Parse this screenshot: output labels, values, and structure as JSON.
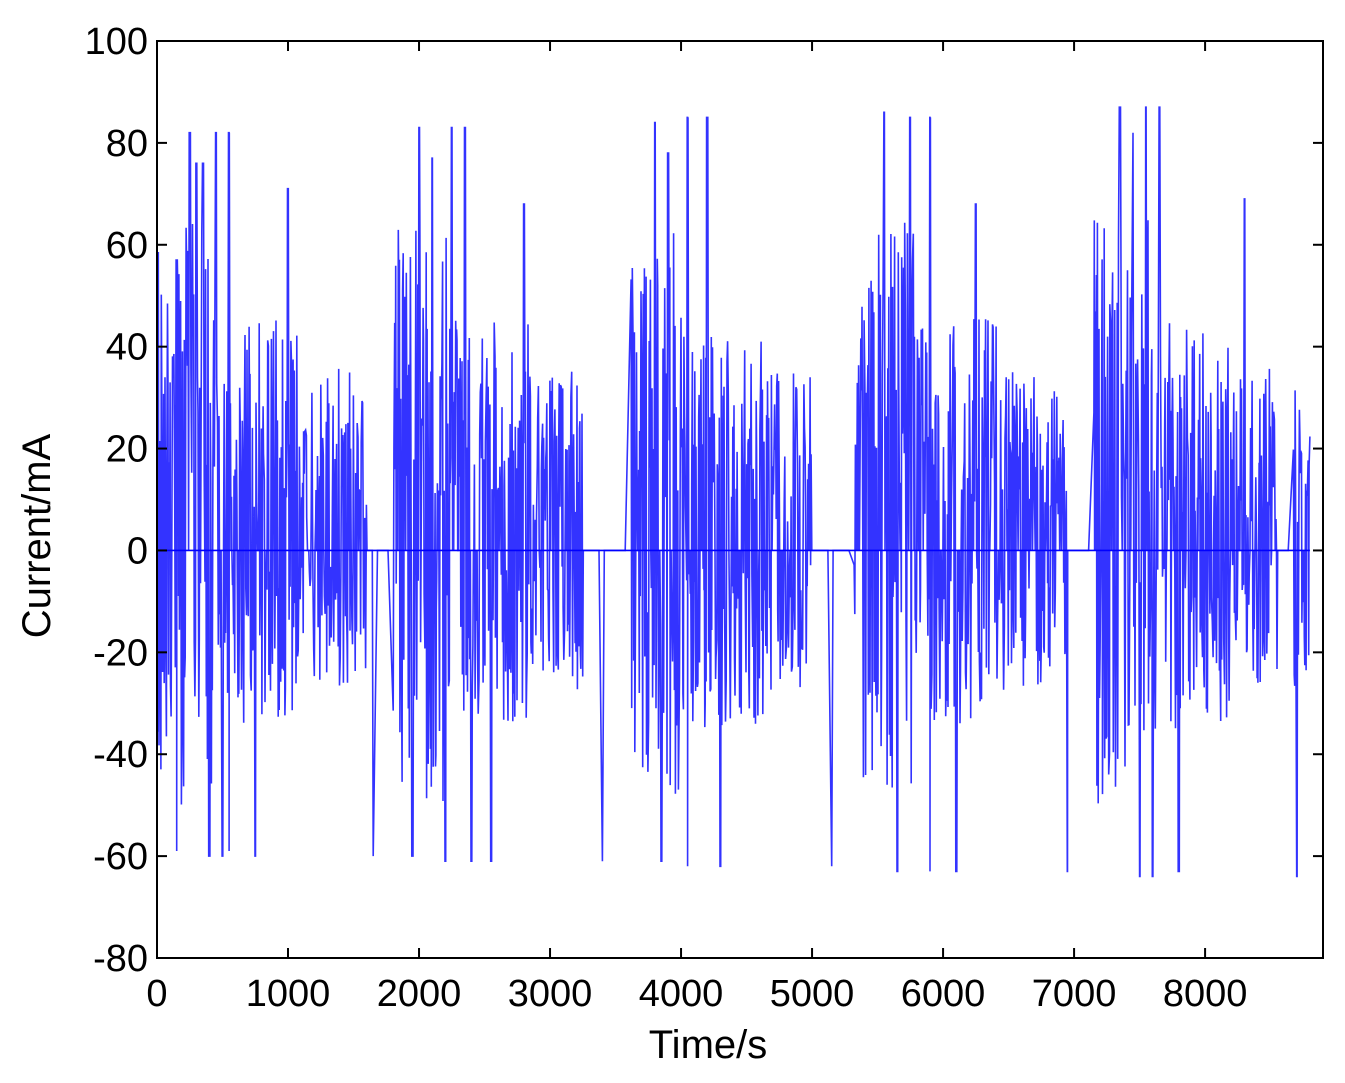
{
  "chart_data": {
    "type": "line",
    "title": "",
    "xlabel": "Time/s",
    "ylabel": "Current/mA",
    "xlim": [
      0,
      8900
    ],
    "ylim": [
      -80,
      100
    ],
    "xticks": [
      0,
      1000,
      2000,
      3000,
      4000,
      5000,
      6000,
      7000,
      8000
    ],
    "xtick_labels": [
      "0",
      "1000",
      "2000",
      "3000",
      "4000",
      "5000",
      "6000",
      "7000",
      "8000"
    ],
    "yticks": [
      -80,
      -60,
      -40,
      -20,
      0,
      20,
      40,
      60,
      80,
      100
    ],
    "ytick_labels": [
      "-80",
      "-60",
      "-40",
      "-20",
      "0",
      "20",
      "40",
      "60",
      "80",
      "100"
    ],
    "grid": false,
    "line_color": "#0000ff",
    "sample_interval_s": 1,
    "series": [
      {
        "pattern": "repeated dynamic drive cycle, approx. 1780 s period",
        "zero_current_intervals": [
          [
            1600,
            1800
          ],
          [
            3250,
            3600
          ],
          [
            5000,
            5300
          ],
          [
            6950,
            7150
          ],
          [
            8550,
            8650
          ]
        ],
        "peaks": [
          {
            "t": 150,
            "v": 57
          },
          {
            "t": 250,
            "v": 82
          },
          {
            "t": 300,
            "v": 76
          },
          {
            "t": 350,
            "v": 76
          },
          {
            "t": 450,
            "v": 82
          },
          {
            "t": 550,
            "v": 82
          },
          {
            "t": 1000,
            "v": 71
          },
          {
            "t": 2000,
            "v": 83
          },
          {
            "t": 2100,
            "v": 77
          },
          {
            "t": 2250,
            "v": 83
          },
          {
            "t": 2350,
            "v": 83
          },
          {
            "t": 2800,
            "v": 68
          },
          {
            "t": 3800,
            "v": 84
          },
          {
            "t": 3900,
            "v": 78
          },
          {
            "t": 4050,
            "v": 85
          },
          {
            "t": 4200,
            "v": 85
          },
          {
            "t": 5550,
            "v": 86
          },
          {
            "t": 5750,
            "v": 85
          },
          {
            "t": 5900,
            "v": 85
          },
          {
            "t": 6250,
            "v": 68
          },
          {
            "t": 7350,
            "v": 87
          },
          {
            "t": 7450,
            "v": 82
          },
          {
            "t": 7550,
            "v": 87
          },
          {
            "t": 7650,
            "v": 87
          },
          {
            "t": 8300,
            "v": 69
          }
        ],
        "troughs": [
          {
            "t": 150,
            "v": -59
          },
          {
            "t": 400,
            "v": -60
          },
          {
            "t": 500,
            "v": -60
          },
          {
            "t": 550,
            "v": -59
          },
          {
            "t": 750,
            "v": -60
          },
          {
            "t": 1650,
            "v": -60
          },
          {
            "t": 1950,
            "v": -60
          },
          {
            "t": 2200,
            "v": -61
          },
          {
            "t": 2400,
            "v": -61
          },
          {
            "t": 2550,
            "v": -61
          },
          {
            "t": 3400,
            "v": -61
          },
          {
            "t": 3850,
            "v": -61
          },
          {
            "t": 4050,
            "v": -62
          },
          {
            "t": 4300,
            "v": -62
          },
          {
            "t": 5150,
            "v": -62
          },
          {
            "t": 5650,
            "v": -63
          },
          {
            "t": 5900,
            "v": -63
          },
          {
            "t": 6100,
            "v": -63
          },
          {
            "t": 6950,
            "v": -63
          },
          {
            "t": 7500,
            "v": -64
          },
          {
            "t": 7600,
            "v": -64
          },
          {
            "t": 7800,
            "v": -63
          },
          {
            "t": 8700,
            "v": -64
          }
        ]
      }
    ]
  }
}
